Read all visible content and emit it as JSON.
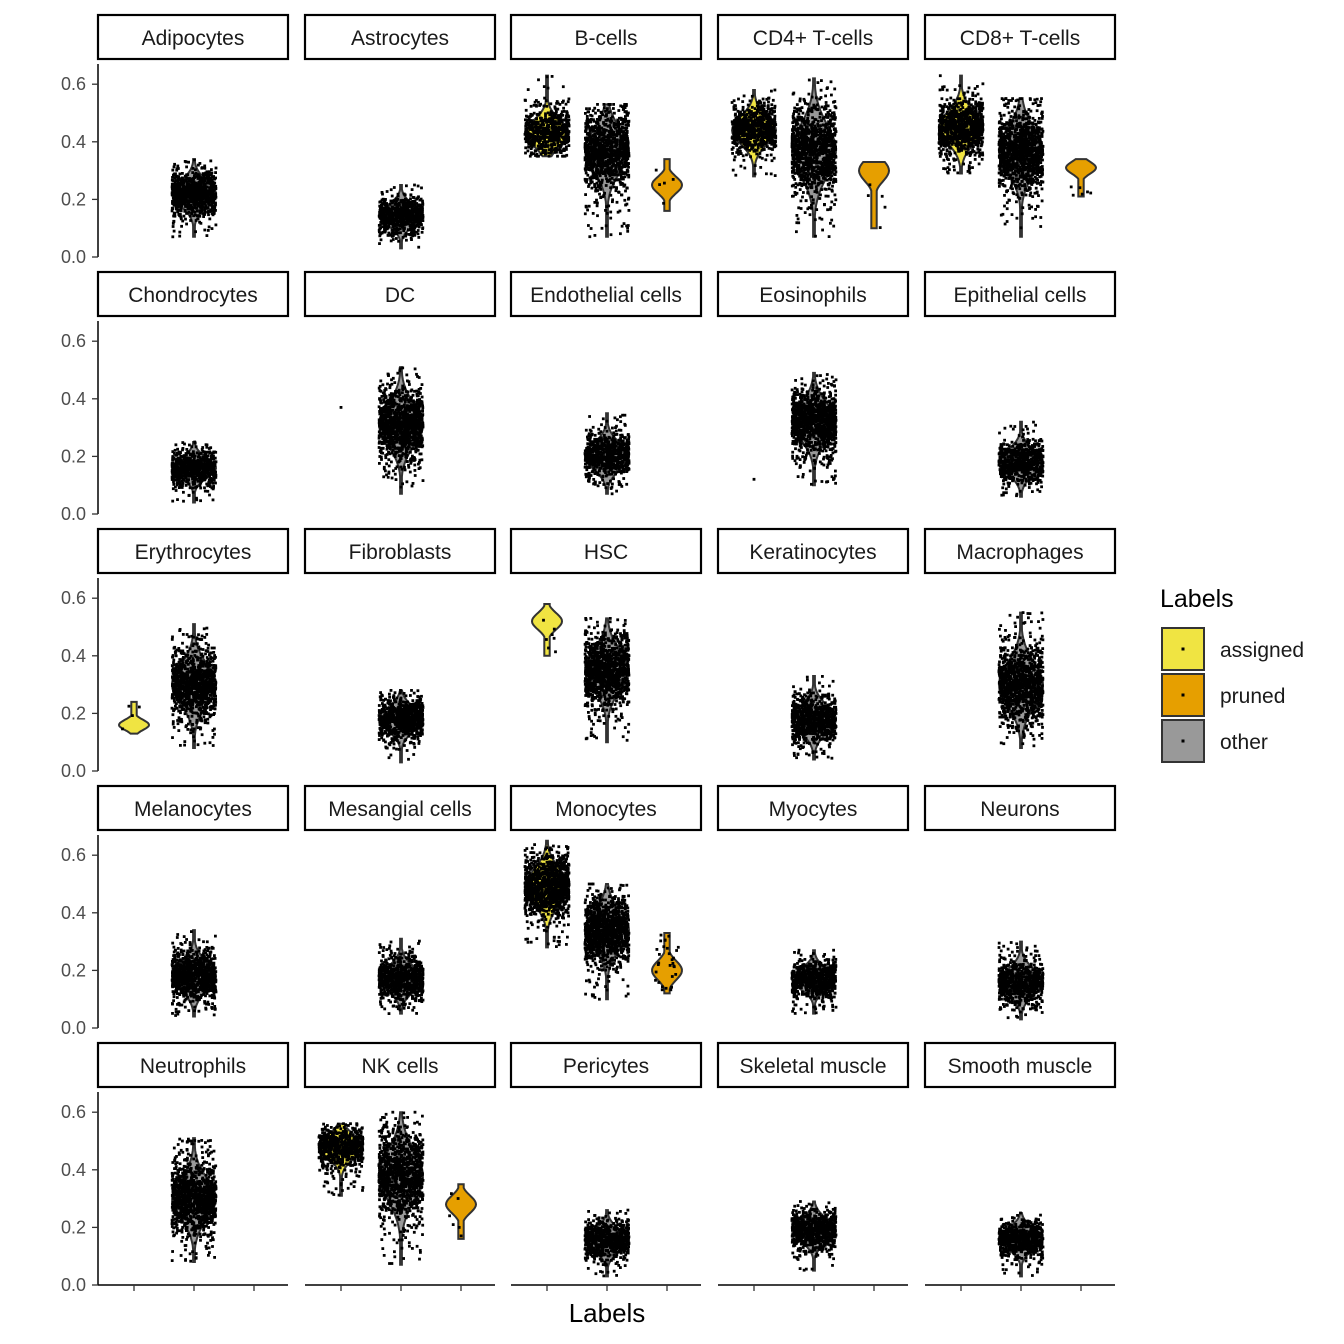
{
  "chart_data": {
    "type": "violin",
    "x_axis_label": "Labels",
    "y_ticks": [
      "0.0",
      "0.2",
      "0.4",
      "0.6"
    ],
    "ylim": [
      0,
      0.67
    ],
    "x_levels": [
      "assigned",
      "other",
      "pruned"
    ],
    "legend": {
      "title": "Labels",
      "position": "right",
      "entries": [
        {
          "label": "assigned",
          "color": "#F0E442"
        },
        {
          "label": "pruned",
          "color": "#E69F00"
        },
        {
          "label": "other",
          "color": "#999999"
        }
      ]
    },
    "panels": [
      {
        "label": "Adipocytes",
        "groups": [
          {
            "level": "other",
            "center": 0.22,
            "min": 0.07,
            "max": 0.34,
            "count": 900
          }
        ]
      },
      {
        "label": "Astrocytes",
        "groups": [
          {
            "level": "other",
            "center": 0.145,
            "min": 0.03,
            "max": 0.25,
            "count": 700
          }
        ]
      },
      {
        "label": "B-cells",
        "groups": [
          {
            "level": "assigned",
            "center": 0.43,
            "min": 0.35,
            "max": 0.63,
            "count": 600
          },
          {
            "level": "other",
            "center": 0.37,
            "min": 0.07,
            "max": 0.53,
            "count": 1600
          },
          {
            "level": "pruned",
            "center": 0.25,
            "min": 0.16,
            "max": 0.34,
            "count": 5
          }
        ]
      },
      {
        "label": "CD4+ T-cells",
        "groups": [
          {
            "level": "assigned",
            "center": 0.44,
            "min": 0.28,
            "max": 0.58,
            "count": 700
          },
          {
            "level": "other",
            "center": 0.37,
            "min": 0.07,
            "max": 0.62,
            "count": 2200
          },
          {
            "level": "pruned",
            "center": 0.3,
            "min": 0.1,
            "max": 0.33,
            "count": 5
          }
        ]
      },
      {
        "label": "CD8+ T-cells",
        "groups": [
          {
            "level": "assigned",
            "center": 0.45,
            "min": 0.29,
            "max": 0.63,
            "count": 900
          },
          {
            "level": "other",
            "center": 0.37,
            "min": 0.07,
            "max": 0.55,
            "count": 1800
          },
          {
            "level": "pruned",
            "center": 0.31,
            "min": 0.21,
            "max": 0.34,
            "count": 6
          }
        ]
      },
      {
        "label": "Chondrocytes",
        "groups": [
          {
            "level": "other",
            "center": 0.16,
            "min": 0.04,
            "max": 0.25,
            "count": 700
          }
        ]
      },
      {
        "label": "DC",
        "groups": [
          {
            "level": "assigned",
            "center": 0.37,
            "min": 0.37,
            "max": 0.37,
            "count": 1
          },
          {
            "level": "other",
            "center": 0.31,
            "min": 0.07,
            "max": 0.51,
            "count": 2000
          }
        ]
      },
      {
        "label": "Endothelial cells",
        "groups": [
          {
            "level": "other",
            "center": 0.2,
            "min": 0.07,
            "max": 0.35,
            "count": 700
          }
        ]
      },
      {
        "label": "Eosinophils",
        "groups": [
          {
            "level": "assigned",
            "center": 0.12,
            "min": 0.12,
            "max": 0.12,
            "count": 1
          },
          {
            "level": "other",
            "center": 0.32,
            "min": 0.1,
            "max": 0.49,
            "count": 1600
          }
        ]
      },
      {
        "label": "Epithelial cells",
        "groups": [
          {
            "level": "other",
            "center": 0.18,
            "min": 0.06,
            "max": 0.32,
            "count": 700
          }
        ]
      },
      {
        "label": "Erythrocytes",
        "groups": [
          {
            "level": "assigned",
            "center": 0.16,
            "min": 0.13,
            "max": 0.24,
            "count": 4
          },
          {
            "level": "other",
            "center": 0.3,
            "min": 0.08,
            "max": 0.51,
            "count": 1500
          }
        ]
      },
      {
        "label": "Fibroblasts",
        "groups": [
          {
            "level": "other",
            "center": 0.18,
            "min": 0.03,
            "max": 0.28,
            "count": 800
          }
        ]
      },
      {
        "label": "HSC",
        "groups": [
          {
            "level": "assigned",
            "center": 0.52,
            "min": 0.4,
            "max": 0.58,
            "count": 7
          },
          {
            "level": "other",
            "center": 0.35,
            "min": 0.1,
            "max": 0.53,
            "count": 1500
          }
        ]
      },
      {
        "label": "Keratinocytes",
        "groups": [
          {
            "level": "other",
            "center": 0.18,
            "min": 0.04,
            "max": 0.33,
            "count": 800
          }
        ]
      },
      {
        "label": "Macrophages",
        "groups": [
          {
            "level": "other",
            "center": 0.3,
            "min": 0.08,
            "max": 0.55,
            "count": 2200
          }
        ]
      },
      {
        "label": "Melanocytes",
        "groups": [
          {
            "level": "other",
            "center": 0.18,
            "min": 0.04,
            "max": 0.34,
            "count": 900
          }
        ]
      },
      {
        "label": "Mesangial cells",
        "groups": [
          {
            "level": "other",
            "center": 0.17,
            "min": 0.05,
            "max": 0.31,
            "count": 800
          }
        ]
      },
      {
        "label": "Monocytes",
        "groups": [
          {
            "level": "assigned",
            "center": 0.49,
            "min": 0.28,
            "max": 0.65,
            "count": 1200
          },
          {
            "level": "other",
            "center": 0.34,
            "min": 0.1,
            "max": 0.5,
            "count": 1200
          },
          {
            "level": "pruned",
            "center": 0.2,
            "min": 0.12,
            "max": 0.33,
            "count": 30
          }
        ]
      },
      {
        "label": "Myocytes",
        "groups": [
          {
            "level": "other",
            "center": 0.17,
            "min": 0.05,
            "max": 0.27,
            "count": 700
          }
        ]
      },
      {
        "label": "Neurons",
        "groups": [
          {
            "level": "other",
            "center": 0.16,
            "min": 0.03,
            "max": 0.3,
            "count": 700
          }
        ]
      },
      {
        "label": "Neutrophils",
        "groups": [
          {
            "level": "other",
            "center": 0.3,
            "min": 0.08,
            "max": 0.51,
            "count": 1800
          }
        ]
      },
      {
        "label": "NK cells",
        "groups": [
          {
            "level": "assigned",
            "center": 0.48,
            "min": 0.31,
            "max": 0.56,
            "count": 700
          },
          {
            "level": "other",
            "center": 0.38,
            "min": 0.07,
            "max": 0.6,
            "count": 1800
          },
          {
            "level": "pruned",
            "center": 0.28,
            "min": 0.16,
            "max": 0.35,
            "count": 6
          }
        ]
      },
      {
        "label": "Pericytes",
        "groups": [
          {
            "level": "other",
            "center": 0.155,
            "min": 0.03,
            "max": 0.26,
            "count": 700
          }
        ]
      },
      {
        "label": "Skeletal muscle",
        "groups": [
          {
            "level": "other",
            "center": 0.19,
            "min": 0.05,
            "max": 0.29,
            "count": 800
          }
        ]
      },
      {
        "label": "Smooth muscle",
        "groups": [
          {
            "level": "other",
            "center": 0.16,
            "min": 0.03,
            "max": 0.25,
            "count": 700
          }
        ]
      }
    ]
  }
}
